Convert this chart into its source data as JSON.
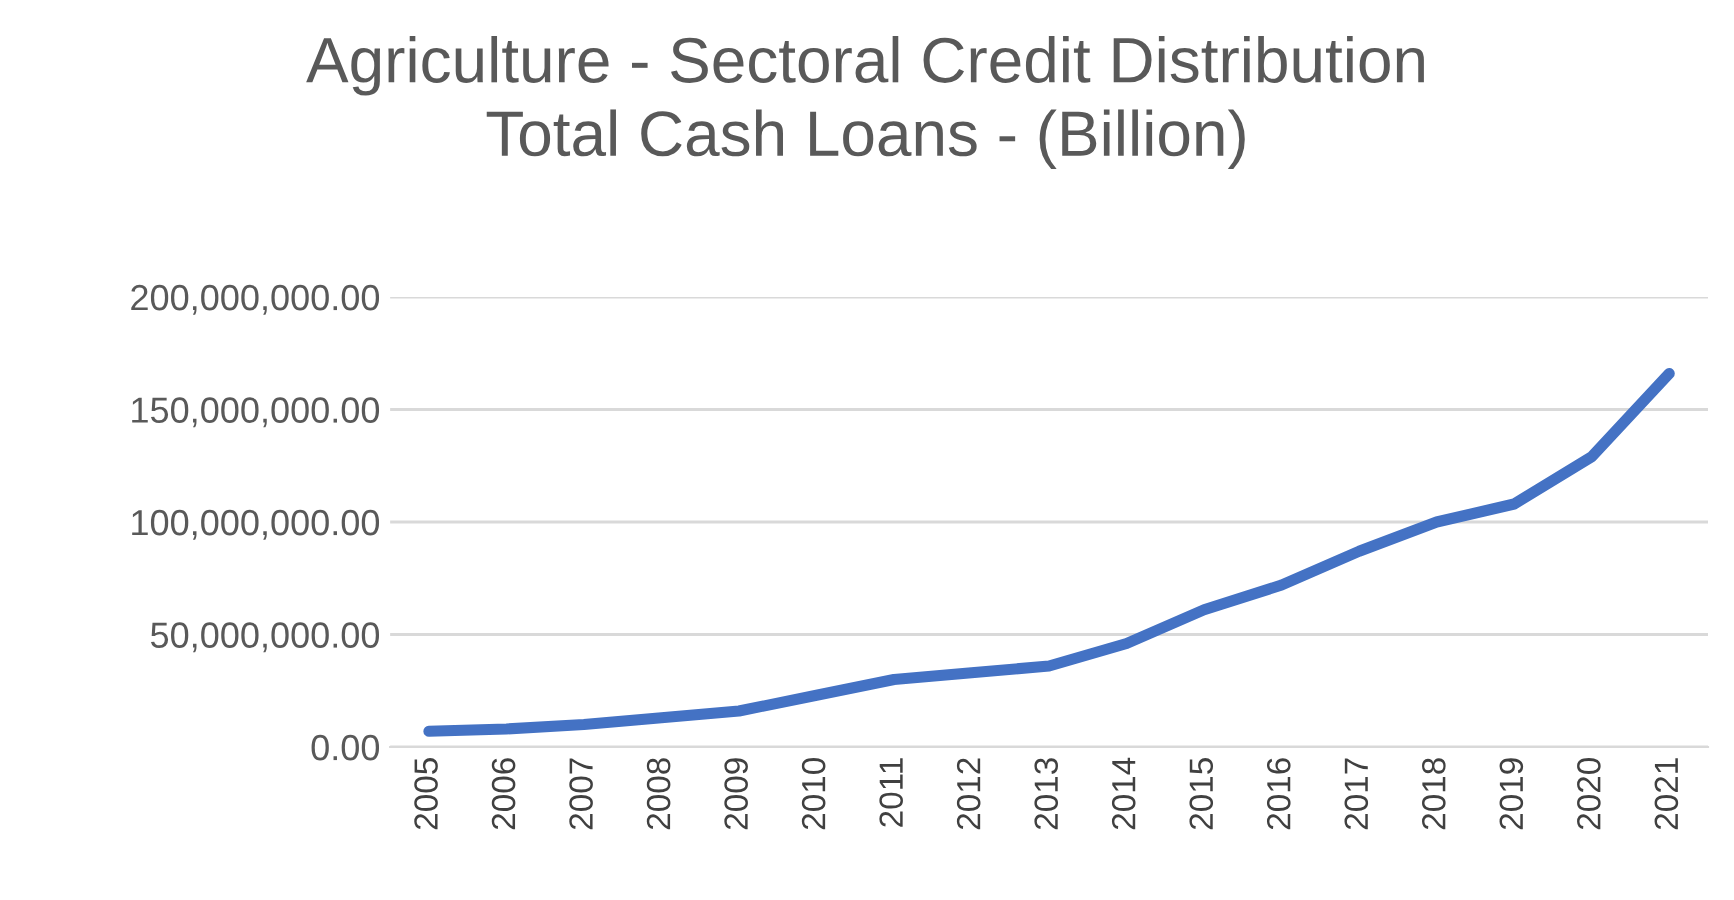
{
  "chart_data": {
    "type": "line",
    "title": "Agriculture - Sectoral Credit Distribution\nTotal Cash Loans - (Billion)",
    "categories": [
      "2005",
      "2006",
      "2007",
      "2008",
      "2009",
      "2010",
      "2011",
      "2012",
      "2013",
      "2014",
      "2015",
      "2016",
      "2017",
      "2018",
      "2019",
      "2020",
      "2021"
    ],
    "series": [
      {
        "color": "#4472c4",
        "values": [
          7000000,
          8000000,
          10000000,
          13000000,
          16000000,
          23000000,
          30000000,
          33000000,
          36000000,
          46000000,
          61000000,
          72000000,
          87000000,
          100000000,
          108000000,
          129000000,
          166000000
        ]
      }
    ],
    "ylim": [
      0,
      200000000
    ],
    "yticks": [
      {
        "value": 0,
        "label": "0.00"
      },
      {
        "value": 50000000,
        "label": "50,000,000.00"
      },
      {
        "value": 100000000,
        "label": "100,000,000.00"
      },
      {
        "value": 150000000,
        "label": "150,000,000.00"
      },
      {
        "value": 200000000,
        "label": "200,000,000.00"
      }
    ],
    "grid": "y"
  }
}
